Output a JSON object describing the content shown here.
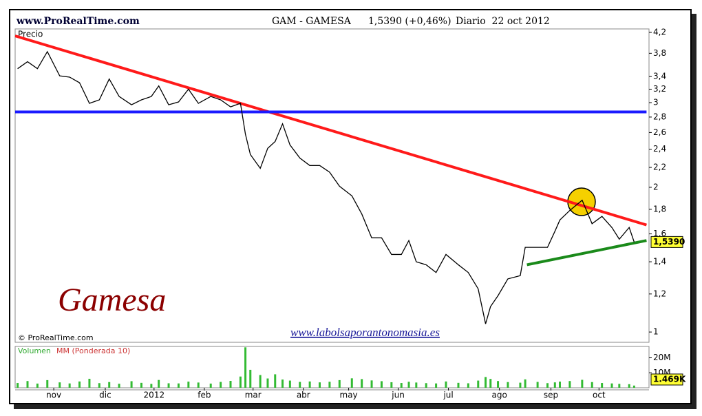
{
  "chart_data": {
    "type": "line",
    "source": "www.ProRealTime.com",
    "title": "GAM - GAMESA",
    "quote": "1,5390 (+0,46%)",
    "period": "Diario  22 oct 2012",
    "panel_label": "Precio",
    "name_text": "Gamesa",
    "website": "www.labolsaporantonomasia.es",
    "copyright": "© ProRealTime.com",
    "log_scale": true,
    "color": "#000000",
    "xlim": [
      0,
      256
    ],
    "xticks": [
      {
        "value": 15.6,
        "label": "nov"
      },
      {
        "value": 36.4,
        "label": "dic"
      },
      {
        "value": 56.1,
        "label": "2012"
      },
      {
        "value": 76.4,
        "label": "feb"
      },
      {
        "value": 96.1,
        "label": "mar"
      },
      {
        "value": 116.4,
        "label": "abr"
      },
      {
        "value": 134.7,
        "label": "may"
      },
      {
        "value": 154.7,
        "label": "jun"
      },
      {
        "value": 175,
        "label": "jul"
      },
      {
        "value": 195.6,
        "label": "ago"
      },
      {
        "value": 216.4,
        "label": "sep"
      },
      {
        "value": 235.8,
        "label": "oct"
      }
    ],
    "ylim": [
      0.952,
      4.27
    ],
    "yticks": [
      {
        "value": 4.2,
        "label": "4,2"
      },
      {
        "value": 3.8,
        "label": "3,8"
      },
      {
        "value": 3.4,
        "label": "3,4"
      },
      {
        "value": 3.2,
        "label": "3,2"
      },
      3,
      {
        "value": 2.8,
        "label": "2,8"
      },
      {
        "value": 2.6,
        "label": "2,6"
      },
      {
        "value": 2.4,
        "label": "2,4"
      },
      {
        "value": 2.2,
        "label": "2,2"
      },
      2,
      {
        "value": 1.8,
        "label": "1,8"
      },
      {
        "value": 1.6,
        "label": "1,6"
      },
      {
        "value": 1.4,
        "label": "1,4"
      },
      {
        "value": 1.2,
        "label": "1,2"
      },
      1
    ],
    "x": [
      1,
      5,
      9,
      13,
      18,
      22,
      26,
      30,
      34,
      38,
      42,
      47,
      51,
      55,
      58,
      62,
      66,
      70,
      74,
      79,
      83,
      87,
      91,
      93,
      95,
      99,
      102,
      105,
      108,
      111,
      115,
      119,
      123,
      127,
      131,
      136,
      140,
      144,
      148,
      152,
      156,
      159,
      162,
      166,
      170,
      174,
      179,
      183,
      187,
      190,
      192,
      195,
      199,
      204,
      206,
      211,
      215,
      218,
      220,
      224,
      229,
      233,
      237,
      241,
      244,
      248,
      250
    ],
    "values": [
      3.53,
      3.65,
      3.53,
      3.83,
      3.41,
      3.39,
      3.3,
      2.99,
      3.04,
      3.36,
      3.09,
      2.97,
      3.04,
      3.09,
      3.25,
      2.97,
      3.01,
      3.2,
      2.99,
      3.09,
      3.04,
      2.94,
      2.99,
      2.58,
      2.34,
      2.19,
      2.41,
      2.49,
      2.71,
      2.45,
      2.3,
      2.22,
      2.22,
      2.15,
      2.01,
      1.92,
      1.76,
      1.57,
      1.57,
      1.45,
      1.45,
      1.55,
      1.4,
      1.38,
      1.33,
      1.45,
      1.38,
      1.33,
      1.23,
      1.04,
      1.13,
      1.19,
      1.29,
      1.31,
      1.5,
      1.5,
      1.5,
      1.62,
      1.71,
      1.79,
      1.88,
      1.68,
      1.74,
      1.65,
      1.56,
      1.65,
      1.539
    ],
    "last_label": "1,5390",
    "lines": [
      {
        "color": "#ff1a1a",
        "x": [
          0,
          255
        ],
        "values": [
          4.13,
          1.67
        ]
      },
      {
        "color": "#1a1aff",
        "x": [
          0,
          255
        ],
        "values": [
          2.87,
          2.87
        ]
      },
      {
        "color": "#1a8a1a",
        "x": [
          206.7,
          255
        ],
        "values": [
          1.38,
          1.55
        ]
      }
    ],
    "volume": {
      "label": "Volumen",
      "ma_label": "MM (Ponderada 10)",
      "color": "#33bb33",
      "ylim": [
        0,
        27600000
      ],
      "yticks": [
        {
          "value": 20000000,
          "label": "20M"
        },
        {
          "value": 10000000,
          "label": "10M"
        }
      ],
      "values": [
        3200000,
        4500000,
        2800000,
        5100000,
        3600000,
        2900000,
        4200000,
        6000000,
        3100000,
        3800000,
        2700000,
        4400000,
        3300000,
        2600000,
        5200000,
        3000000,
        2900000,
        4100000,
        3500000,
        2800000,
        3900000,
        4600000,
        7500000,
        27000000,
        12000000,
        8500000,
        6200000,
        9000000,
        5500000,
        4800000,
        3900000,
        4200000,
        3600000,
        4000000,
        5100000,
        6300000,
        5800000,
        4900000,
        4400000,
        3700000,
        3200000,
        4000000,
        3500000,
        3100000,
        2900000,
        4200000,
        3300000,
        3000000,
        4800000,
        7200000,
        5900000,
        4500000,
        3800000,
        3400000,
        5600000,
        3900000,
        3100000,
        3600000,
        4100000,
        4500000,
        5300000,
        3800000,
        3200000,
        2900000,
        2600000,
        2400000,
        1469000
      ],
      "last_label": "1.469K"
    }
  }
}
